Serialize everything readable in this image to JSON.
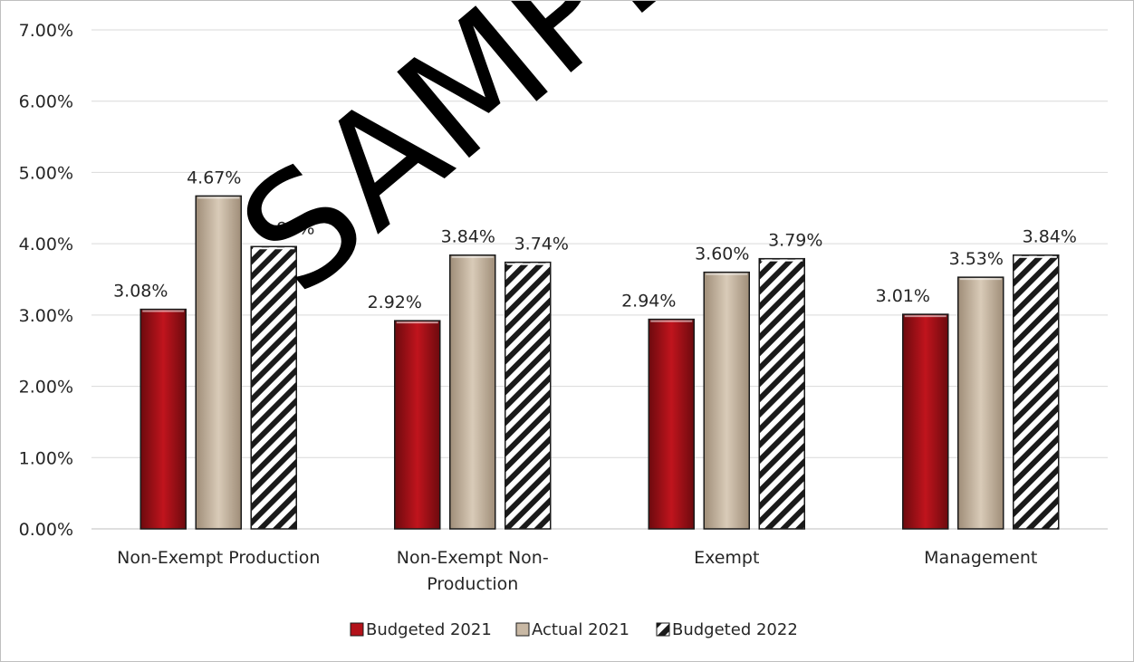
{
  "chart_data": {
    "type": "bar",
    "title": "",
    "xlabel": "",
    "ylabel": "",
    "ylim": [
      0,
      0.07
    ],
    "y_ticks": [
      "0.00%",
      "1.00%",
      "2.00%",
      "3.00%",
      "4.00%",
      "5.00%",
      "6.00%",
      "7.00%"
    ],
    "grid": true,
    "legend_position": "bottom",
    "categories": [
      [
        "Non-Exempt Production"
      ],
      [
        "Non-Exempt Non-",
        "Production"
      ],
      [
        "Exempt"
      ],
      [
        "Management"
      ]
    ],
    "series": [
      {
        "name": "Budgeted 2021",
        "values": [
          0.0308,
          0.0292,
          0.0294,
          0.0301
        ],
        "labels": [
          "3.08%",
          "2.92%",
          "2.94%",
          "3.01%"
        ],
        "color": "#b3121a"
      },
      {
        "name": "Actual 2021",
        "values": [
          0.0467,
          0.0384,
          0.036,
          0.0353
        ],
        "labels": [
          "4.67%",
          "3.84%",
          "3.60%",
          "3.53%"
        ],
        "color": "#c8b8a4"
      },
      {
        "name": "Budgeted 2022",
        "values": [
          0.0396,
          0.0374,
          0.0379,
          0.0384
        ],
        "labels": [
          "3.96%",
          "3.74%",
          "3.79%",
          "3.84%"
        ],
        "color": "#ffffff",
        "pattern": "diagonal-hatch"
      }
    ]
  },
  "watermark": {
    "text": "SAMPLE"
  }
}
